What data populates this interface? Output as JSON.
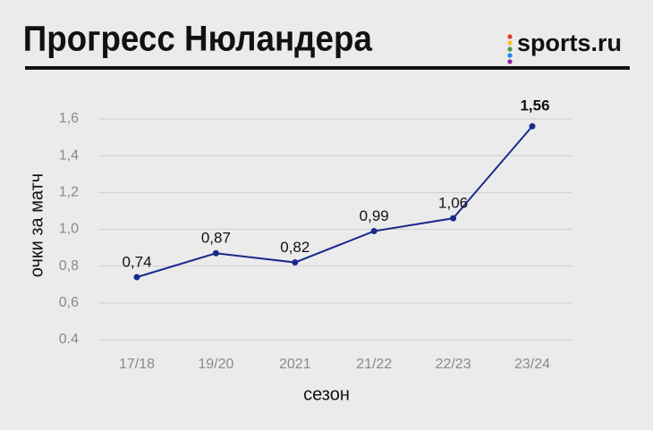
{
  "chart_data": {
    "type": "line",
    "title": "Прогресс Нюландера",
    "logo": "sports.ru",
    "x_label": "сезон",
    "y_label": "очки за матч",
    "categories": [
      "17/18",
      "19/20",
      "2021",
      "21/22",
      "22/23",
      "23/24"
    ],
    "values": [
      0.74,
      0.87,
      0.82,
      0.99,
      1.06,
      1.56
    ],
    "value_labels": [
      "0,74",
      "0,87",
      "0,82",
      "0,99",
      "1,06",
      "1,56"
    ],
    "color": "#1a2a8c",
    "ylim": [
      0.4,
      1.6
    ],
    "yticks": [
      {
        "value": 0.4,
        "label": "0.4"
      },
      {
        "value": 0.6,
        "label": "0,6"
      },
      {
        "value": 0.8,
        "label": "0,8"
      },
      {
        "value": 1.0,
        "label": "1,0"
      },
      {
        "value": 1.2,
        "label": "1,2"
      },
      {
        "value": 1.4,
        "label": "1,4"
      },
      {
        "value": 1.6,
        "label": "1,6"
      }
    ],
    "grid": true
  }
}
